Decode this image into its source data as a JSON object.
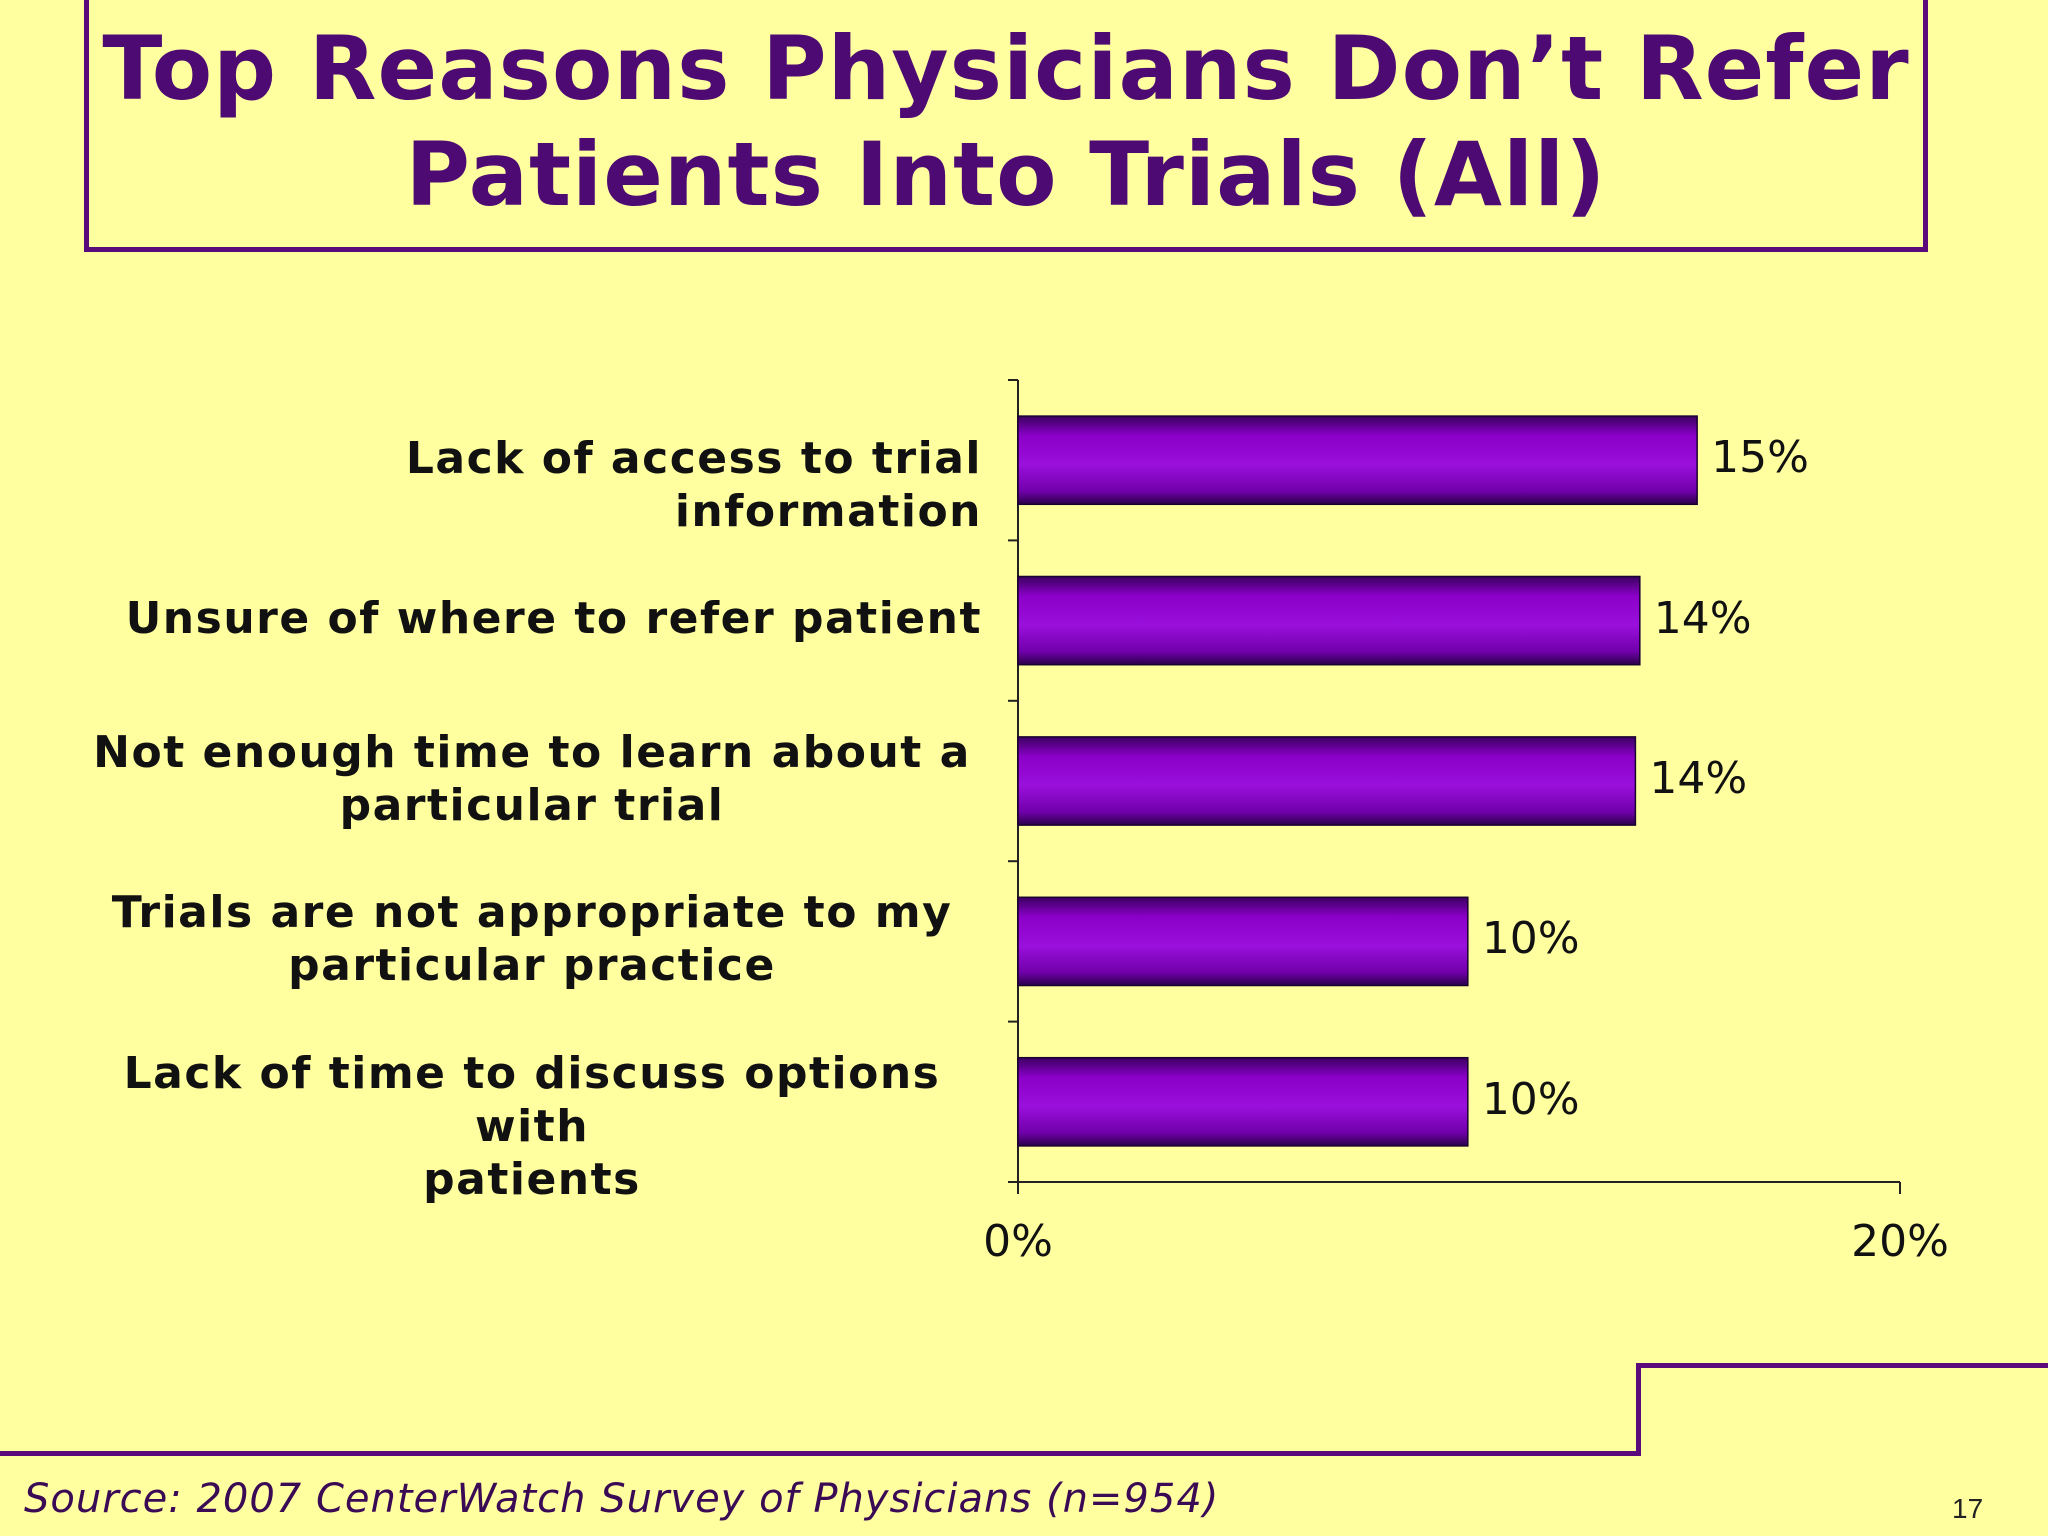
{
  "slide": {
    "title_lines": [
      "Top Reasons Physicians Don’t Refer",
      "Patients Into Trials (All)"
    ],
    "source": "Source: 2007 CenterWatch Survey of Physicians (n=954)",
    "page_number": "17"
  },
  "colors": {
    "background": "#ffffa0",
    "title": "#4d0a73",
    "bar": "#8a00c8",
    "frame": "#5a0a7a"
  },
  "chart_data": {
    "type": "bar",
    "orientation": "horizontal",
    "title": "Top Reasons Physicians Don’t Refer Patients Into Trials (All)",
    "categories": [
      [
        "Lack of access to trial information"
      ],
      [
        "Unsure of where to refer patient"
      ],
      [
        "Not enough time to learn about a",
        "particular trial"
      ],
      [
        "Trials are not appropriate to my",
        "particular practice"
      ],
      [
        "Lack of time to discuss options with",
        "patients"
      ]
    ],
    "values": [
      15.4,
      14.1,
      14.0,
      10.2,
      10.2
    ],
    "value_labels": [
      "15%",
      "14%",
      "14%",
      "10%",
      "10%"
    ],
    "xlim": [
      0,
      20
    ],
    "x_ticks": [
      "0%",
      "20%"
    ],
    "grid": false,
    "legend": "none"
  }
}
